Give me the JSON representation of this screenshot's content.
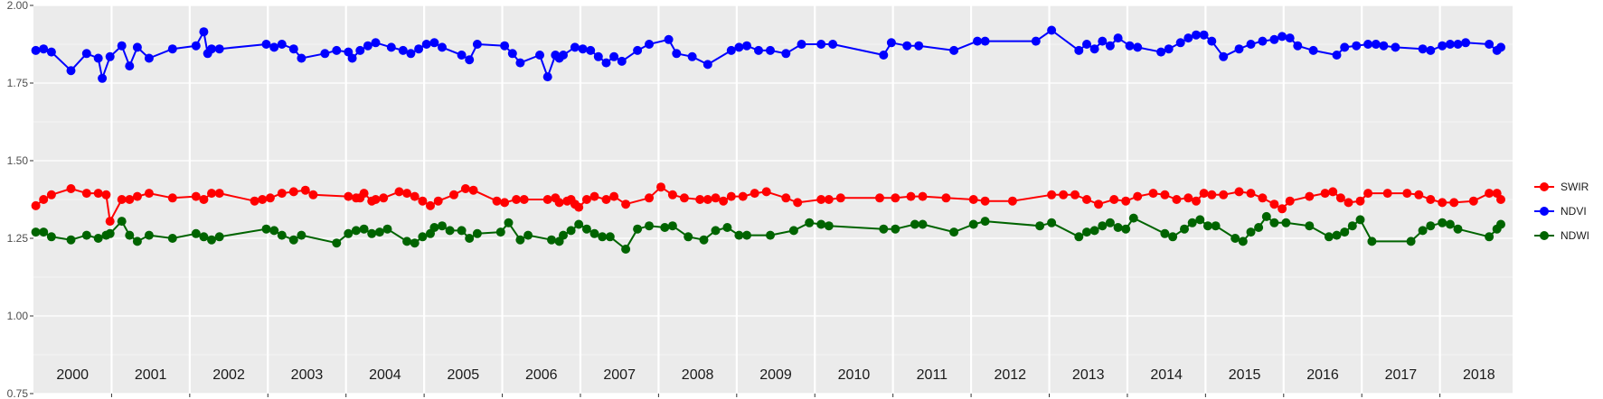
{
  "chart_data": {
    "type": "line",
    "title": "",
    "xlabel": "",
    "ylabel": "",
    "ylim": [
      0.75,
      2.0
    ],
    "yticks": [
      "0.75",
      "1.00",
      "1.25",
      "1.50",
      "1.75",
      "2.00"
    ],
    "year_labels": [
      "2000",
      "2001",
      "2002",
      "2003",
      "2004",
      "2005",
      "2006",
      "2007",
      "2008",
      "2009",
      "2010",
      "2011",
      "2012",
      "2013",
      "2014",
      "2015",
      "2016",
      "2017",
      "2018"
    ],
    "grid": true,
    "legend_position": "right",
    "series": [
      {
        "name": "SWIR",
        "color": "#ff0000",
        "x": [
          2000.0,
          2000.1,
          2000.2,
          2000.45,
          2000.65,
          2000.8,
          2000.9,
          2000.95,
          2001.1,
          2001.2,
          2001.3,
          2001.45,
          2001.75,
          2002.05,
          2002.15,
          2002.25,
          2002.35,
          2002.8,
          2002.9,
          2003.0,
          2003.15,
          2003.3,
          2003.45,
          2003.55,
          2004.0,
          2004.1,
          2004.15,
          2004.2,
          2004.3,
          2004.35,
          2004.45,
          2004.65,
          2004.75,
          2004.85,
          2004.95,
          2005.05,
          2005.15,
          2005.35,
          2005.5,
          2005.6,
          2005.9,
          2006.0,
          2006.15,
          2006.25,
          2006.55,
          2006.65,
          2006.7,
          2006.8,
          2006.85,
          2006.9,
          2006.95,
          2007.05,
          2007.15,
          2007.3,
          2007.4,
          2007.55,
          2007.85,
          2008.0,
          2008.15,
          2008.3,
          2008.5,
          2008.6,
          2008.7,
          2008.8,
          2008.9,
          2009.05,
          2009.2,
          2009.35,
          2009.6,
          2009.75,
          2010.05,
          2010.15,
          2010.3,
          2010.8,
          2011.0,
          2011.2,
          2011.35,
          2011.65,
          2012.0,
          2012.15,
          2012.5,
          2013.0,
          2013.15,
          2013.3,
          2013.45,
          2013.6,
          2013.8,
          2013.95,
          2014.1,
          2014.3,
          2014.45,
          2014.6,
          2014.75,
          2014.85,
          2014.95,
          2015.05,
          2015.2,
          2015.4,
          2015.55,
          2015.7,
          2015.85,
          2015.95,
          2016.05,
          2016.3,
          2016.5,
          2016.6,
          2016.7,
          2016.8,
          2016.95,
          2017.05,
          2017.3,
          2017.55,
          2017.7,
          2017.85,
          2018.0,
          2018.15,
          2018.4,
          2018.6,
          2018.7,
          2018.75
        ],
        "y": [
          1.355,
          1.375,
          1.39,
          1.41,
          1.395,
          1.395,
          1.39,
          1.305,
          1.375,
          1.375,
          1.385,
          1.395,
          1.38,
          1.385,
          1.375,
          1.395,
          1.395,
          1.37,
          1.375,
          1.38,
          1.395,
          1.4,
          1.405,
          1.39,
          1.385,
          1.38,
          1.38,
          1.395,
          1.37,
          1.375,
          1.38,
          1.4,
          1.395,
          1.385,
          1.37,
          1.355,
          1.37,
          1.39,
          1.41,
          1.405,
          1.37,
          1.365,
          1.375,
          1.375,
          1.375,
          1.38,
          1.365,
          1.37,
          1.375,
          1.36,
          1.35,
          1.375,
          1.385,
          1.375,
          1.385,
          1.36,
          1.38,
          1.415,
          1.39,
          1.38,
          1.375,
          1.375,
          1.38,
          1.37,
          1.385,
          1.385,
          1.395,
          1.4,
          1.38,
          1.365,
          1.375,
          1.375,
          1.38,
          1.38,
          1.38,
          1.385,
          1.385,
          1.38,
          1.375,
          1.37,
          1.37,
          1.39,
          1.39,
          1.39,
          1.375,
          1.36,
          1.375,
          1.37,
          1.385,
          1.395,
          1.39,
          1.375,
          1.38,
          1.37,
          1.395,
          1.39,
          1.39,
          1.4,
          1.395,
          1.38,
          1.36,
          1.345,
          1.37,
          1.385,
          1.395,
          1.4,
          1.38,
          1.365,
          1.37,
          1.395,
          1.395,
          1.395,
          1.39,
          1.375,
          1.365,
          1.365,
          1.37,
          1.395,
          1.395,
          1.375
        ]
      },
      {
        "name": "NDVI",
        "color": "#0000ff",
        "x": [
          2000.0,
          2000.1,
          2000.2,
          2000.45,
          2000.65,
          2000.8,
          2000.85,
          2000.95,
          2001.1,
          2001.2,
          2001.3,
          2001.45,
          2001.75,
          2002.05,
          2002.15,
          2002.2,
          2002.25,
          2002.35,
          2002.95,
          2003.05,
          2003.15,
          2003.3,
          2003.4,
          2003.7,
          2003.85,
          2004.0,
          2004.05,
          2004.15,
          2004.25,
          2004.35,
          2004.55,
          2004.7,
          2004.8,
          2004.9,
          2005.0,
          2005.1,
          2005.2,
          2005.45,
          2005.55,
          2005.65,
          2006.0,
          2006.1,
          2006.2,
          2006.45,
          2006.55,
          2006.65,
          2006.7,
          2006.75,
          2006.9,
          2007.0,
          2007.1,
          2007.2,
          2007.3,
          2007.4,
          2007.5,
          2007.7,
          2007.85,
          2008.1,
          2008.2,
          2008.4,
          2008.6,
          2008.9,
          2009.0,
          2009.1,
          2009.25,
          2009.4,
          2009.6,
          2009.8,
          2010.05,
          2010.2,
          2010.85,
          2010.95,
          2011.15,
          2011.3,
          2011.75,
          2012.05,
          2012.15,
          2012.8,
          2013.0,
          2013.35,
          2013.45,
          2013.55,
          2013.65,
          2013.75,
          2013.85,
          2014.0,
          2014.1,
          2014.4,
          2014.5,
          2014.65,
          2014.75,
          2014.85,
          2014.95,
          2015.05,
          2015.2,
          2015.4,
          2015.55,
          2015.7,
          2015.85,
          2015.95,
          2016.05,
          2016.15,
          2016.35,
          2016.65,
          2016.75,
          2016.9,
          2017.05,
          2017.15,
          2017.25,
          2017.4,
          2017.75,
          2017.85,
          2018.0,
          2018.1,
          2018.2,
          2018.3,
          2018.6,
          2018.7,
          2018.75
        ],
        "y": [
          1.855,
          1.86,
          1.85,
          1.79,
          1.845,
          1.83,
          1.765,
          1.835,
          1.87,
          1.805,
          1.865,
          1.83,
          1.86,
          1.87,
          1.915,
          1.845,
          1.86,
          1.86,
          1.875,
          1.865,
          1.875,
          1.86,
          1.83,
          1.845,
          1.855,
          1.85,
          1.83,
          1.855,
          1.87,
          1.88,
          1.865,
          1.855,
          1.845,
          1.86,
          1.875,
          1.88,
          1.865,
          1.84,
          1.825,
          1.875,
          1.87,
          1.845,
          1.815,
          1.84,
          1.77,
          1.84,
          1.83,
          1.84,
          1.865,
          1.86,
          1.855,
          1.835,
          1.815,
          1.835,
          1.82,
          1.855,
          1.875,
          1.89,
          1.845,
          1.835,
          1.81,
          1.855,
          1.865,
          1.87,
          1.855,
          1.855,
          1.845,
          1.875,
          1.875,
          1.875,
          1.84,
          1.88,
          1.87,
          1.87,
          1.855,
          1.885,
          1.885,
          1.885,
          1.92,
          1.855,
          1.875,
          1.86,
          1.885,
          1.87,
          1.895,
          1.87,
          1.865,
          1.85,
          1.86,
          1.88,
          1.895,
          1.905,
          1.905,
          1.885,
          1.835,
          1.86,
          1.875,
          1.885,
          1.89,
          1.9,
          1.895,
          1.87,
          1.855,
          1.84,
          1.865,
          1.87,
          1.875,
          1.875,
          1.87,
          1.865,
          1.86,
          1.855,
          1.87,
          1.875,
          1.875,
          1.88,
          1.875,
          1.855,
          1.865
        ]
      },
      {
        "name": "NDWI",
        "color": "#006400",
        "x": [
          2000.0,
          2000.1,
          2000.2,
          2000.45,
          2000.65,
          2000.8,
          2000.9,
          2000.95,
          2001.1,
          2001.2,
          2001.3,
          2001.45,
          2001.75,
          2002.05,
          2002.15,
          2002.25,
          2002.35,
          2002.95,
          2003.05,
          2003.15,
          2003.3,
          2003.4,
          2003.85,
          2004.0,
          2004.1,
          2004.2,
          2004.3,
          2004.4,
          2004.5,
          2004.75,
          2004.85,
          2004.95,
          2005.05,
          2005.1,
          2005.2,
          2005.3,
          2005.45,
          2005.55,
          2005.65,
          2005.95,
          2006.05,
          2006.2,
          2006.3,
          2006.6,
          2006.7,
          2006.75,
          2006.85,
          2006.95,
          2007.05,
          2007.15,
          2007.25,
          2007.35,
          2007.55,
          2007.7,
          2007.85,
          2008.05,
          2008.15,
          2008.35,
          2008.55,
          2008.7,
          2008.85,
          2009.0,
          2009.1,
          2009.4,
          2009.7,
          2009.9,
          2010.05,
          2010.15,
          2010.85,
          2011.0,
          2011.25,
          2011.35,
          2011.75,
          2012.0,
          2012.15,
          2012.85,
          2013.0,
          2013.35,
          2013.45,
          2013.55,
          2013.65,
          2013.75,
          2013.85,
          2013.95,
          2014.05,
          2014.45,
          2014.55,
          2014.7,
          2014.8,
          2014.9,
          2015.0,
          2015.1,
          2015.35,
          2015.45,
          2015.55,
          2015.65,
          2015.75,
          2015.85,
          2016.0,
          2016.3,
          2016.55,
          2016.65,
          2016.75,
          2016.85,
          2016.95,
          2017.1,
          2017.6,
          2017.75,
          2017.85,
          2018.0,
          2018.1,
          2018.2,
          2018.6,
          2018.7,
          2018.75
        ],
        "y": [
          1.27,
          1.27,
          1.255,
          1.245,
          1.26,
          1.25,
          1.26,
          1.265,
          1.305,
          1.26,
          1.24,
          1.26,
          1.25,
          1.265,
          1.255,
          1.245,
          1.255,
          1.28,
          1.275,
          1.26,
          1.245,
          1.26,
          1.235,
          1.265,
          1.275,
          1.28,
          1.265,
          1.27,
          1.28,
          1.24,
          1.235,
          1.255,
          1.265,
          1.285,
          1.29,
          1.275,
          1.275,
          1.25,
          1.265,
          1.27,
          1.3,
          1.245,
          1.26,
          1.245,
          1.24,
          1.26,
          1.275,
          1.295,
          1.28,
          1.265,
          1.255,
          1.255,
          1.215,
          1.28,
          1.29,
          1.285,
          1.29,
          1.255,
          1.245,
          1.275,
          1.285,
          1.26,
          1.26,
          1.26,
          1.275,
          1.3,
          1.295,
          1.29,
          1.28,
          1.28,
          1.295,
          1.295,
          1.27,
          1.295,
          1.305,
          1.29,
          1.3,
          1.255,
          1.27,
          1.275,
          1.29,
          1.3,
          1.285,
          1.28,
          1.315,
          1.265,
          1.255,
          1.28,
          1.3,
          1.31,
          1.29,
          1.29,
          1.25,
          1.24,
          1.27,
          1.285,
          1.32,
          1.3,
          1.3,
          1.29,
          1.255,
          1.26,
          1.27,
          1.29,
          1.31,
          1.24,
          1.24,
          1.275,
          1.29,
          1.3,
          1.295,
          1.28,
          1.255,
          1.28,
          1.295
        ]
      }
    ]
  }
}
